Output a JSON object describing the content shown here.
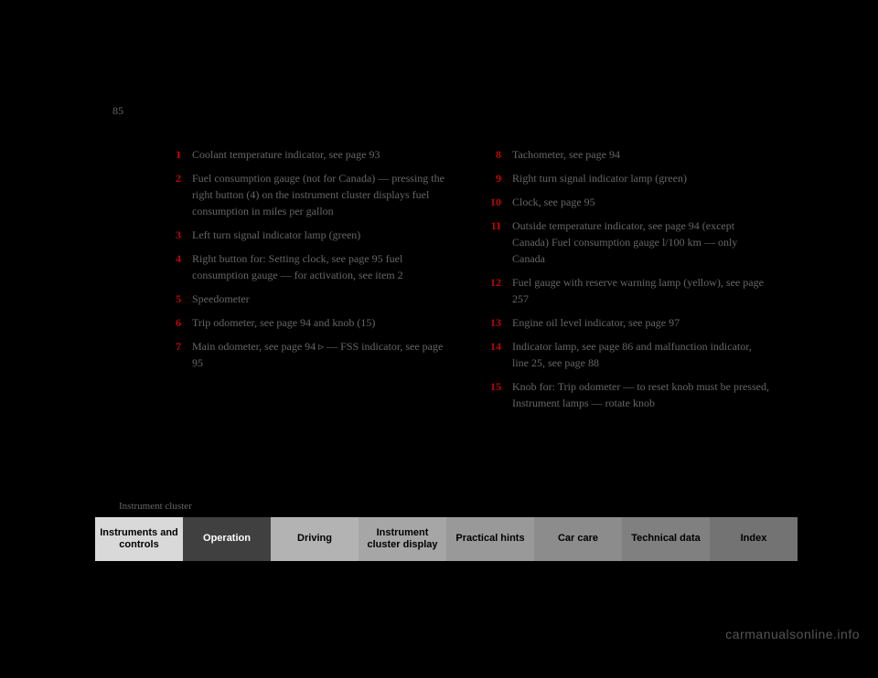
{
  "page_number": "85",
  "breadcrumb": "Instrument cluster",
  "left_items": [
    {
      "num": "1",
      "desc": "Coolant temperature indicator, see page 93"
    },
    {
      "num": "2",
      "desc": "Fuel consumption gauge (not for Canada) — pressing the right button (4) on the instrument cluster displays fuel consumption in miles per gallon"
    },
    {
      "num": "3",
      "desc": "Left turn signal indicator lamp (green)"
    },
    {
      "num": "4",
      "desc": "Right button for: Setting clock, see page 95 fuel consumption gauge — for activation, see item 2"
    },
    {
      "num": "5",
      "desc": "Speedometer"
    },
    {
      "num": "6",
      "desc": "Trip odometer, see page 94 and knob (15)"
    },
    {
      "num": "7",
      "desc": "Main odometer, see page 94 ▹ — FSS indicator, see page 95"
    }
  ],
  "right_items": [
    {
      "num": "8",
      "desc": "Tachometer, see page 94"
    },
    {
      "num": "9",
      "desc": "Right turn signal indicator lamp (green)"
    },
    {
      "num": "10",
      "desc": "Clock, see page 95"
    },
    {
      "num": "11",
      "desc": "Outside temperature indicator, see page 94 (except Canada) Fuel consumption gauge l/100 km — only Canada"
    },
    {
      "num": "12",
      "desc": "Fuel gauge with reserve warning lamp (yellow), see page 257"
    },
    {
      "num": "13",
      "desc": "Engine oil level indicator, see page 97"
    },
    {
      "num": "14",
      "desc": "Indicator lamp, see page 86 and malfunction indicator, line 25, see page 88"
    },
    {
      "num": "15",
      "desc": "Knob for: Trip odometer — to reset knob must be pressed, Instrument lamps — rotate knob"
    }
  ],
  "tabs": [
    {
      "label": "Instruments and controls",
      "bg": "#d9d9d9"
    },
    {
      "label": "Operation",
      "bg": "#404040",
      "color": "#ffffff"
    },
    {
      "label": "Driving",
      "bg": "#b3b3b3"
    },
    {
      "label": "Instrument cluster display",
      "bg": "#a6a6a6"
    },
    {
      "label": "Practical hints",
      "bg": "#999999"
    },
    {
      "label": "Car care",
      "bg": "#8c8c8c"
    },
    {
      "label": "Technical data",
      "bg": "#808080"
    },
    {
      "label": "Index",
      "bg": "#737373"
    }
  ],
  "watermark": "carmanualsonline.info"
}
